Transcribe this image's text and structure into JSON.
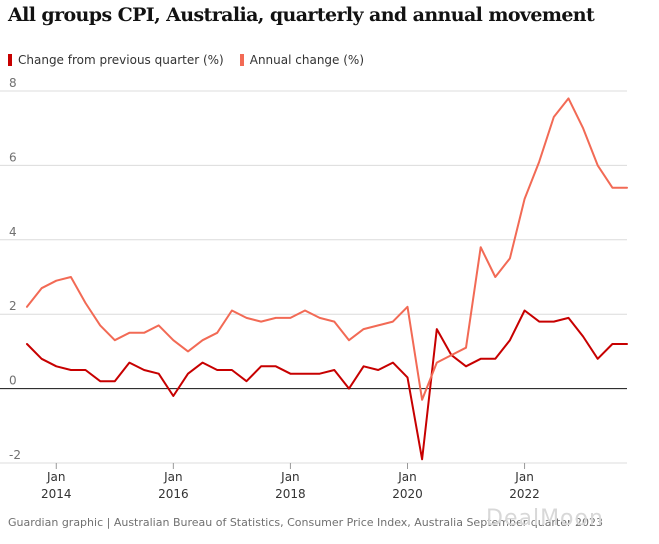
{
  "title": "All groups CPI, Australia, quarterly and annual movement",
  "colors": {
    "quarterly": "#c70000",
    "annual": "#f26a55",
    "grid": "#dcdcdc",
    "text": "#121212"
  },
  "chart_data": {
    "type": "line",
    "title": "All groups CPI, Australia, quarterly and annual movement",
    "xlabel": "",
    "ylabel": "",
    "ylim": [
      -2,
      8
    ],
    "yticks": [
      8,
      6,
      4,
      2,
      0,
      -2
    ],
    "ytick_labels": [
      "8",
      "6",
      "4",
      "2",
      "0",
      "-2"
    ],
    "xlim": [
      2013.5,
      2023.75
    ],
    "xticks": [
      {
        "value": 2014,
        "label_top": "Jan",
        "label_bottom": "2014"
      },
      {
        "value": 2016,
        "label_top": "Jan",
        "label_bottom": "2016"
      },
      {
        "value": 2018,
        "label_top": "Jan",
        "label_bottom": "2018"
      },
      {
        "value": 2020,
        "label_top": "Jan",
        "label_bottom": "2020"
      },
      {
        "value": 2022,
        "label_top": "Jan",
        "label_bottom": "2022"
      }
    ],
    "legend_position": "top-left",
    "x": [
      2013.5,
      2013.75,
      2014.0,
      2014.25,
      2014.5,
      2014.75,
      2015.0,
      2015.25,
      2015.5,
      2015.75,
      2016.0,
      2016.25,
      2016.5,
      2016.75,
      2017.0,
      2017.25,
      2017.5,
      2017.75,
      2018.0,
      2018.25,
      2018.5,
      2018.75,
      2019.0,
      2019.25,
      2019.5,
      2019.75,
      2020.0,
      2020.25,
      2020.5,
      2020.75,
      2021.0,
      2021.25,
      2021.5,
      2021.75,
      2022.0,
      2022.25,
      2022.5,
      2022.75,
      2023.0,
      2023.25,
      2023.5,
      2023.75
    ],
    "series": [
      {
        "name": "Change from previous quarter (%)",
        "color": "#c70000",
        "values": [
          1.2,
          0.8,
          0.6,
          0.5,
          0.5,
          0.2,
          0.2,
          0.7,
          0.5,
          0.4,
          -0.2,
          0.4,
          0.7,
          0.5,
          0.5,
          0.2,
          0.6,
          0.6,
          0.4,
          0.4,
          0.4,
          0.5,
          0.0,
          0.6,
          0.5,
          0.7,
          0.3,
          -1.9,
          1.6,
          0.9,
          0.6,
          0.8,
          0.8,
          1.3,
          2.1,
          1.8,
          1.8,
          1.9,
          1.4,
          0.8,
          1.2,
          1.2
        ]
      },
      {
        "name": "Annual change (%)",
        "color": "#f26a55",
        "values": [
          2.2,
          2.7,
          2.9,
          3.0,
          2.3,
          1.7,
          1.3,
          1.5,
          1.5,
          1.7,
          1.3,
          1.0,
          1.3,
          1.5,
          2.1,
          1.9,
          1.8,
          1.9,
          1.9,
          2.1,
          1.9,
          1.8,
          1.3,
          1.6,
          1.7,
          1.8,
          2.2,
          -0.3,
          0.7,
          0.9,
          1.1,
          3.8,
          3.0,
          3.5,
          5.1,
          6.1,
          7.3,
          7.8,
          7.0,
          6.0,
          5.4,
          5.4
        ]
      }
    ]
  },
  "source": "Guardian graphic | Australian Bureau of Statistics, Consumer Price Index, Australia September quarter 2023",
  "watermark": "DealMoon"
}
